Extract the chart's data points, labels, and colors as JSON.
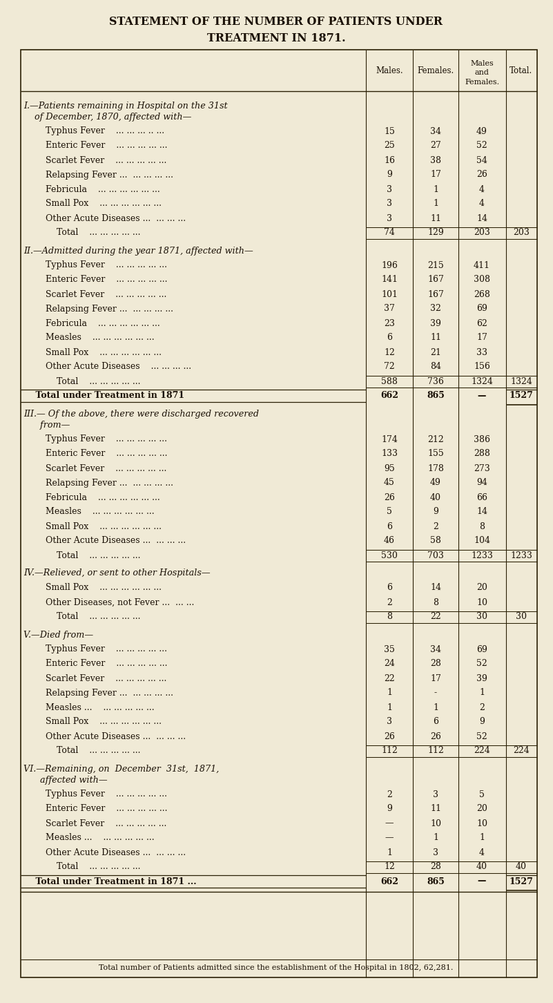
{
  "title_line1": "STATEMENT OF THE NUMBER OF PATIENTS UNDER",
  "title_line2": "TREATMENT IN 1871.",
  "bg_color": "#f0ead6",
  "sections": [
    {
      "heading_lines": [
        "I.—Patients remaining in Hospital on the 31st",
        "    of December, 1870, affected with—"
      ],
      "rows": [
        {
          "label": "        Typhus Fever    ... ... ... .. ...",
          "m": "15",
          "f": "34",
          "mf": "49",
          "t": ""
        },
        {
          "label": "        Enteric Fever    ... ... ... ... ...",
          "m": "25",
          "f": "27",
          "mf": "52",
          "t": ""
        },
        {
          "label": "        Scarlet Fever    ... ... ... ... ...",
          "m": "16",
          "f": "38",
          "mf": "54",
          "t": ""
        },
        {
          "label": "        Relapsing Fever ...  ... ... ... ...",
          "m": "9",
          "f": "17",
          "mf": "26",
          "t": ""
        },
        {
          "label": "        Febricula    ... ... ... ... ... ...",
          "m": "3",
          "f": "1",
          "mf": "4",
          "t": ""
        },
        {
          "label": "        Small Pox    ... ... ... ... ... ...",
          "m": "3",
          "f": "1",
          "mf": "4",
          "t": ""
        },
        {
          "label": "        Other Acute Diseases ...  ... ... ...",
          "m": "3",
          "f": "11",
          "mf": "14",
          "t": ""
        },
        {
          "label": "            Total    ... ... ... ... ...",
          "m": "74",
          "f": "129",
          "mf": "203",
          "t": "203",
          "is_total": true
        }
      ]
    },
    {
      "heading_lines": [
        "II.—Admitted during the year 1871, affected with—"
      ],
      "rows": [
        {
          "label": "        Typhus Fever    ... ... ... ... ...",
          "m": "196",
          "f": "215",
          "mf": "411",
          "t": ""
        },
        {
          "label": "        Enteric Fever    ... ... ... ... ...",
          "m": "141",
          "f": "167",
          "mf": "308",
          "t": ""
        },
        {
          "label": "        Scarlet Fever    ... ... ... ... ...",
          "m": "101",
          "f": "167",
          "mf": "268",
          "t": ""
        },
        {
          "label": "        Relapsing Fever ...  ... ... ... ...",
          "m": "37",
          "f": "32",
          "mf": "69",
          "t": ""
        },
        {
          "label": "        Febricula    ... ... ... ... ... ...",
          "m": "23",
          "f": "39",
          "mf": "62",
          "t": ""
        },
        {
          "label": "        Measles    ... ... ... ... ... ...",
          "m": "6",
          "f": "11",
          "mf": "17",
          "t": ""
        },
        {
          "label": "        Small Pox    ... ... ... ... ... ...",
          "m": "12",
          "f": "21",
          "mf": "33",
          "t": ""
        },
        {
          "label": "        Other Acute Diseases    ... ... ... ...",
          "m": "72",
          "f": "84",
          "mf": "156",
          "t": ""
        },
        {
          "label": "            Total    ... ... ... ... ...",
          "m": "588",
          "f": "736",
          "mf": "1324",
          "t": "1324",
          "is_total": true
        },
        {
          "label": "    Total under Treatment in 1871",
          "m": "662",
          "f": "865",
          "mf": "—",
          "t": "1527",
          "is_total": true,
          "bold": true
        }
      ]
    },
    {
      "heading_lines": [
        "III.— Of the above, there were discharged recovered",
        "      from—"
      ],
      "rows": [
        {
          "label": "        Typhus Fever    ... ... ... ... ...",
          "m": "174",
          "f": "212",
          "mf": "386",
          "t": ""
        },
        {
          "label": "        Enteric Fever    ... ... ... ... ...",
          "m": "133",
          "f": "155",
          "mf": "288",
          "t": ""
        },
        {
          "label": "        Scarlet Fever    ... ... ... ... ...",
          "m": "95",
          "f": "178",
          "mf": "273",
          "t": ""
        },
        {
          "label": "        Relapsing Fever ...  ... ... ... ...",
          "m": "45",
          "f": "49",
          "mf": "94",
          "t": ""
        },
        {
          "label": "        Febricula    ... ... ... ... ... ...",
          "m": "26",
          "f": "40",
          "mf": "66",
          "t": ""
        },
        {
          "label": "        Measles    ... ... ... ... ... ...",
          "m": "5",
          "f": "9",
          "mf": "14",
          "t": ""
        },
        {
          "label": "        Small Pox    ... ... ... ... ... ...",
          "m": "6",
          "f": "2",
          "mf": "8",
          "t": ""
        },
        {
          "label": "        Other Acute Diseases ...  ... ... ...",
          "m": "46",
          "f": "58",
          "mf": "104",
          "t": ""
        },
        {
          "label": "            Total    ... ... ... ... ...",
          "m": "530",
          "f": "703",
          "mf": "1233",
          "t": "1233",
          "is_total": true
        }
      ]
    },
    {
      "heading_lines": [
        "IV.—Relieved, or sent to other Hospitals—"
      ],
      "rows": [
        {
          "label": "        Small Pox    ... ... ... ... ... ...",
          "m": "6",
          "f": "14",
          "mf": "20",
          "t": ""
        },
        {
          "label": "        Other Diseases, not Fever ...  ... ...",
          "m": "2",
          "f": "8",
          "mf": "10",
          "t": ""
        },
        {
          "label": "            Total    ... ... ... ... ...",
          "m": "8",
          "f": "22",
          "mf": "30",
          "t": "30",
          "is_total": true
        }
      ]
    },
    {
      "heading_lines": [
        "V.—Died from—"
      ],
      "rows": [
        {
          "label": "        Typhus Fever    ... ... ... ... ...",
          "m": "35",
          "f": "34",
          "mf": "69",
          "t": ""
        },
        {
          "label": "        Enteric Fever    ... ... ... ... ...",
          "m": "24",
          "f": "28",
          "mf": "52",
          "t": ""
        },
        {
          "label": "        Scarlet Fever    ... ... ... ... ...",
          "m": "22",
          "f": "17",
          "mf": "39",
          "t": ""
        },
        {
          "label": "        Relapsing Fever ...  ... ... ... ...",
          "m": "1",
          "f": "-",
          "mf": "1",
          "t": ""
        },
        {
          "label": "        Measles ...    ... ... ... ... ...",
          "m": "1",
          "f": "1",
          "mf": "2",
          "t": ""
        },
        {
          "label": "        Small Pox    ... ... ... ... ... ...",
          "m": "3",
          "f": "6",
          "mf": "9",
          "t": ""
        },
        {
          "label": "        Other Acute Diseases ...  ... ... ...",
          "m": "26",
          "f": "26",
          "mf": "52",
          "t": ""
        },
        {
          "label": "            Total    ... ... ... ... ...",
          "m": "112",
          "f": "112",
          "mf": "224",
          "t": "224",
          "is_total": true
        }
      ]
    },
    {
      "heading_lines": [
        "VI.—Remaining, on  December  31st,  1871,",
        "      affected with—"
      ],
      "rows": [
        {
          "label": "        Typhus Fever    ... ... ... ... ...",
          "m": "2",
          "f": "3",
          "mf": "5",
          "t": ""
        },
        {
          "label": "        Enteric Fever    ... ... ... ... ...",
          "m": "9",
          "f": "11",
          "mf": "20",
          "t": ""
        },
        {
          "label": "        Scarlet Fever    ... ... ... ... ...",
          "m": "—",
          "f": "10",
          "mf": "10",
          "t": ""
        },
        {
          "label": "        Measles ...    ... ... ... ... ...",
          "m": "—",
          "f": "1",
          "mf": "1",
          "t": ""
        },
        {
          "label": "        Other Acute Diseases ...  ... ... ...",
          "m": "1",
          "f": "3",
          "mf": "4",
          "t": ""
        },
        {
          "label": "            Total    ... ... ... ... ...",
          "m": "12",
          "f": "28",
          "mf": "40",
          "t": "40",
          "is_total": true
        },
        {
          "label": "    Total under Treatment in 1871 ...",
          "m": "662",
          "f": "865",
          "mf": "—",
          "t": "1527",
          "is_total": true,
          "bold": true
        }
      ]
    }
  ],
  "footer": "Total number of Patients admitted since the establishment of the Hospital in 1802, 62,281."
}
